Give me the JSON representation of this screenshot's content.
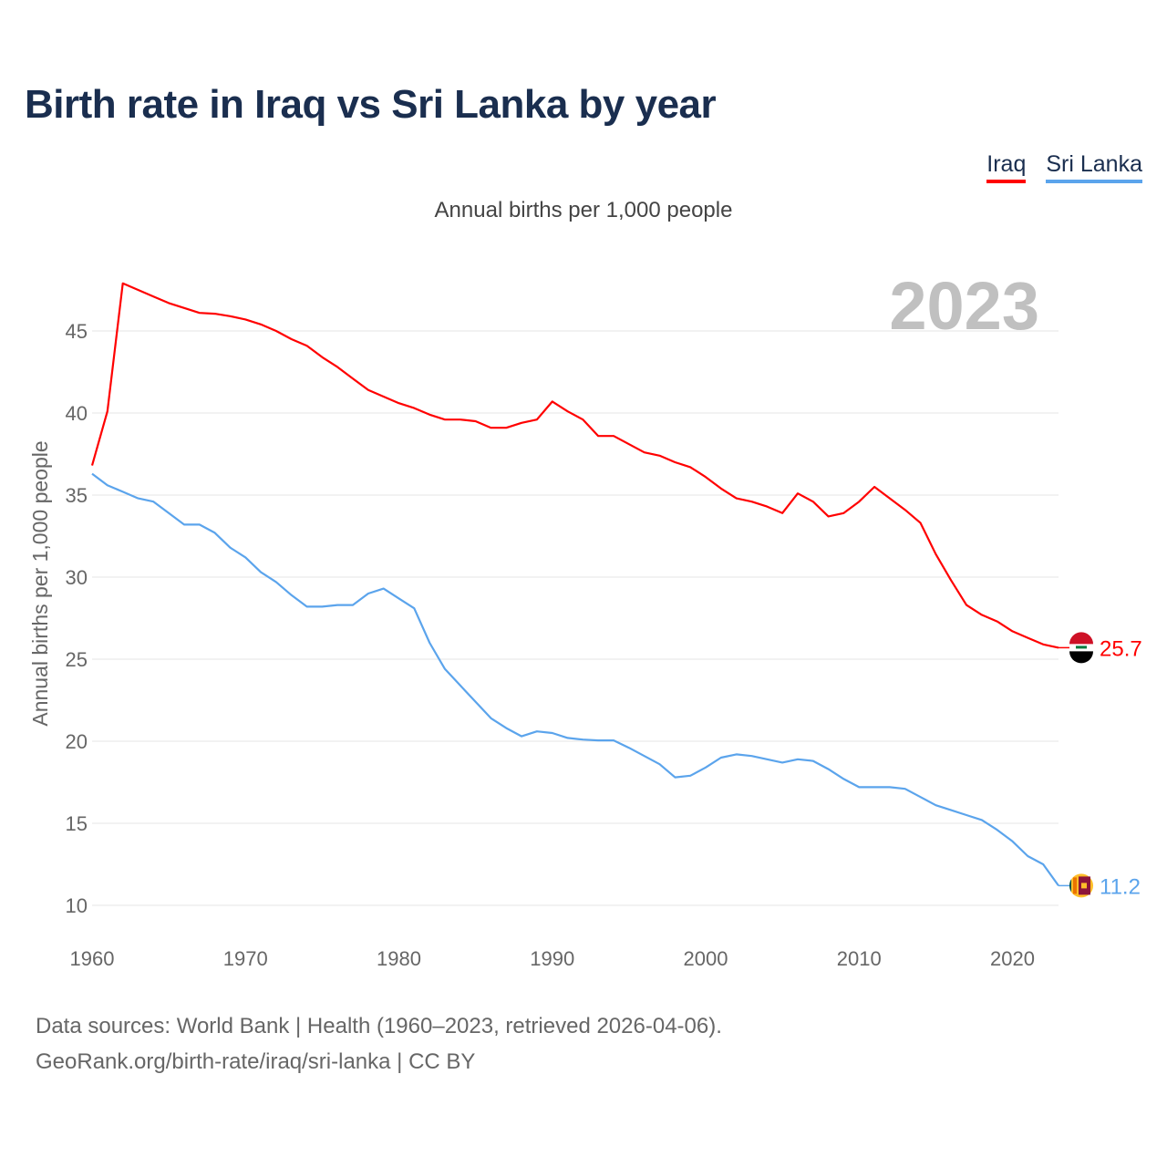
{
  "chart_data": {
    "type": "line",
    "title": "Birth rate in Iraq vs Sri Lanka by year",
    "subtitle": "Annual births per 1,000 people",
    "ylabel": "Annual births per 1,000 people",
    "xlabel": "",
    "year_label": "2023",
    "xlim": [
      1960,
      2023
    ],
    "ylim": [
      10,
      48
    ],
    "x_ticks": [
      1960,
      1970,
      1980,
      1990,
      2000,
      2010,
      2020
    ],
    "y_ticks": [
      10,
      15,
      20,
      25,
      30,
      35,
      40,
      45
    ],
    "grid": true,
    "legend_position": "top-right",
    "x": [
      1960,
      1961,
      1962,
      1963,
      1964,
      1965,
      1966,
      1967,
      1968,
      1969,
      1970,
      1971,
      1972,
      1973,
      1974,
      1975,
      1976,
      1977,
      1978,
      1979,
      1980,
      1981,
      1982,
      1983,
      1984,
      1985,
      1986,
      1987,
      1988,
      1989,
      1990,
      1991,
      1992,
      1993,
      1994,
      1995,
      1996,
      1997,
      1998,
      1999,
      2000,
      2001,
      2002,
      2003,
      2004,
      2005,
      2006,
      2007,
      2008,
      2009,
      2010,
      2011,
      2012,
      2013,
      2014,
      2015,
      2016,
      2017,
      2018,
      2019,
      2020,
      2021,
      2022,
      2023
    ],
    "series": [
      {
        "name": "Iraq",
        "color": "#ff0000",
        "end_label": "25.7",
        "values": [
          36.8,
          40.1,
          47.9,
          47.5,
          47.1,
          46.7,
          46.4,
          46.1,
          46.05,
          45.9,
          45.7,
          45.4,
          45.0,
          44.5,
          44.1,
          43.4,
          42.8,
          42.1,
          41.4,
          41.0,
          40.6,
          40.3,
          39.9,
          39.6,
          39.6,
          39.5,
          39.1,
          39.1,
          39.4,
          39.6,
          40.7,
          40.1,
          39.6,
          38.6,
          38.6,
          38.1,
          37.6,
          37.4,
          37.0,
          36.7,
          36.1,
          35.4,
          34.8,
          34.6,
          34.3,
          33.9,
          35.1,
          34.6,
          33.7,
          33.9,
          34.6,
          35.5,
          34.8,
          34.1,
          33.3,
          31.4,
          29.8,
          28.3,
          27.7,
          27.3,
          26.7,
          26.3,
          25.9,
          25.7
        ]
      },
      {
        "name": "Sri Lanka",
        "color": "#5ba4ec",
        "end_label": "11.2",
        "values": [
          36.3,
          35.6,
          35.2,
          34.8,
          34.6,
          33.9,
          33.2,
          33.2,
          32.7,
          31.8,
          31.2,
          30.3,
          29.7,
          28.9,
          28.2,
          28.2,
          28.3,
          28.3,
          29.0,
          29.3,
          28.7,
          28.1,
          26.0,
          24.4,
          23.4,
          22.4,
          21.4,
          20.8,
          20.3,
          20.6,
          20.5,
          20.2,
          20.1,
          20.05,
          20.05,
          19.6,
          19.1,
          18.6,
          17.8,
          17.9,
          18.4,
          19.0,
          19.2,
          19.1,
          18.9,
          18.7,
          18.9,
          18.8,
          18.3,
          17.7,
          17.2,
          17.2,
          17.2,
          17.1,
          16.6,
          16.1,
          15.8,
          15.5,
          15.2,
          14.6,
          13.9,
          13.0,
          12.5,
          11.2
        ]
      }
    ]
  },
  "footer": {
    "line1": "Data sources: World Bank | Health (1960–2023, retrieved 2026-04-06).",
    "line2": "GeoRank.org/birth-rate/iraq/sri-lanka | CC BY"
  }
}
